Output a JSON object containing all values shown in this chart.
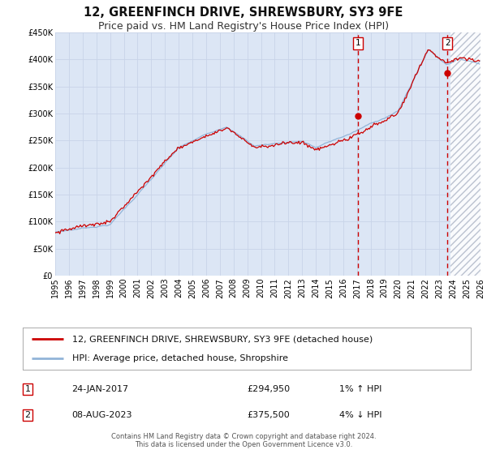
{
  "title": "12, GREENFINCH DRIVE, SHREWSBURY, SY3 9FE",
  "subtitle": "Price paid vs. HM Land Registry's House Price Index (HPI)",
  "ylim": [
    0,
    450000
  ],
  "xlim_start": 1995.0,
  "xlim_end": 2026.0,
  "yticks": [
    0,
    50000,
    100000,
    150000,
    200000,
    250000,
    300000,
    350000,
    400000,
    450000
  ],
  "ytick_labels": [
    "£0",
    "£50K",
    "£100K",
    "£150K",
    "£200K",
    "£250K",
    "£300K",
    "£350K",
    "£400K",
    "£450K"
  ],
  "xticks": [
    1995,
    1996,
    1997,
    1998,
    1999,
    2000,
    2001,
    2002,
    2003,
    2004,
    2005,
    2006,
    2007,
    2008,
    2009,
    2010,
    2011,
    2012,
    2013,
    2014,
    2015,
    2016,
    2017,
    2018,
    2019,
    2020,
    2021,
    2022,
    2023,
    2024,
    2025,
    2026
  ],
  "background_color": "#ffffff",
  "plot_bg_color": "#dce6f5",
  "grid_color": "#c8d4e8",
  "hpi_line_color": "#92b4d8",
  "price_line_color": "#cc0000",
  "sale1_x": 2017.07,
  "sale1_y": 294950,
  "sale2_x": 2023.59,
  "sale2_y": 375500,
  "vline1_x": 2017.07,
  "vline2_x": 2023.59,
  "vline_color": "#cc0000",
  "marker_color": "#cc0000",
  "shaded_region_start": 2023.84,
  "shaded_region_end": 2026.0,
  "legend_label1": "12, GREENFINCH DRIVE, SHREWSBURY, SY3 9FE (detached house)",
  "legend_label2": "HPI: Average price, detached house, Shropshire",
  "table_row1_num": "1",
  "table_row1_date": "24-JAN-2017",
  "table_row1_price": "£294,950",
  "table_row1_hpi": "1% ↑ HPI",
  "table_row2_num": "2",
  "table_row2_date": "08-AUG-2023",
  "table_row2_price": "£375,500",
  "table_row2_hpi": "4% ↓ HPI",
  "footer": "Contains HM Land Registry data © Crown copyright and database right 2024.\nThis data is licensed under the Open Government Licence v3.0.",
  "title_fontsize": 10.5,
  "subtitle_fontsize": 9,
  "tick_fontsize": 7,
  "legend_fontsize": 8,
  "table_fontsize": 8,
  "footer_fontsize": 6
}
